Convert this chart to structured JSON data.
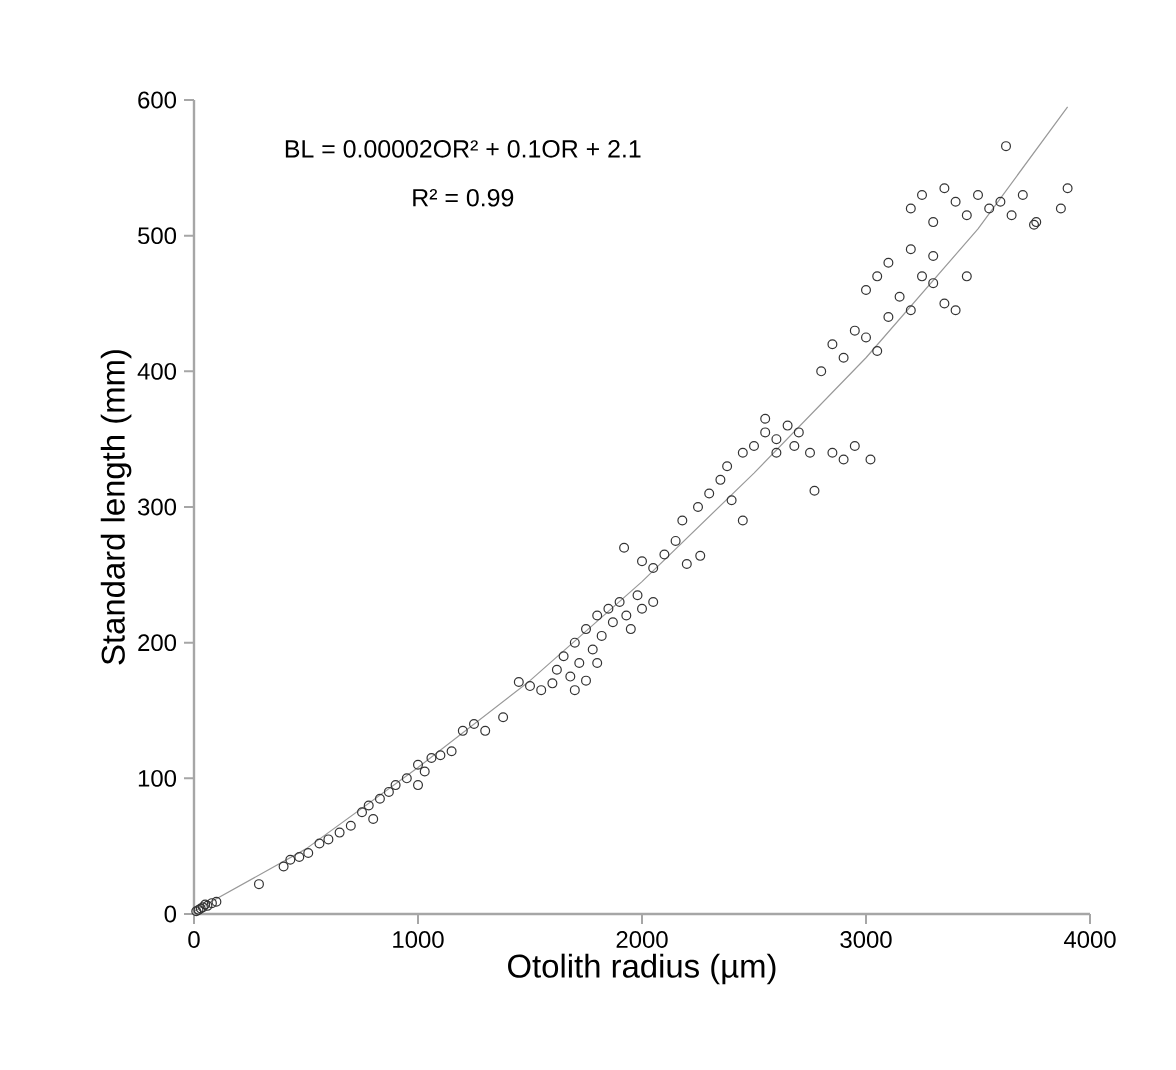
{
  "chart_data": {
    "type": "scatter",
    "xlabel": "Otolith radius (µm)",
    "ylabel": "Standard length (mm)",
    "xlim": [
      0,
      4000
    ],
    "ylim": [
      0,
      600
    ],
    "xticks": [
      0,
      1000,
      2000,
      3000,
      4000
    ],
    "yticks": [
      0,
      100,
      200,
      300,
      400,
      500,
      600
    ],
    "grid": false,
    "annotations": [
      "BL = 0.00002OR² + 0.1OR + 2.1",
      "R² = 0.99"
    ],
    "series": [
      {
        "marker": "circle",
        "color": "#333333",
        "x": [
          10,
          20,
          30,
          40,
          50,
          60,
          80,
          100,
          290,
          400,
          430,
          470,
          510,
          560,
          600,
          650,
          700,
          750,
          780,
          800,
          830,
          870,
          900,
          950,
          1000,
          1030,
          1060,
          1100,
          1150,
          1000,
          1200,
          1250,
          1300,
          1380,
          1450,
          1500,
          1550,
          1600,
          1620,
          1650,
          1680,
          1700,
          1720,
          1750,
          1780,
          1800,
          1820,
          1850,
          1870,
          1900,
          1930,
          1950,
          1980,
          2000,
          2050,
          1700,
          1750,
          1800,
          1920,
          2000,
          2050,
          2100,
          2150,
          2200,
          2260,
          2180,
          2250,
          2300,
          2350,
          2400,
          2450,
          2380,
          2450,
          2500,
          2550,
          2600,
          2650,
          2700,
          2600,
          2550,
          2680,
          2750,
          2770,
          2850,
          2900,
          2950,
          3020,
          2800,
          2850,
          2900,
          2950,
          3000,
          3050,
          3100,
          3000,
          3050,
          3100,
          3150,
          3200,
          3250,
          3300,
          3350,
          3400,
          3450,
          3200,
          3300,
          3200,
          3250,
          3300,
          3350,
          3400,
          3450,
          3500,
          3550,
          3600,
          3650,
          3700,
          3750,
          3760,
          3870,
          3900,
          3625
        ],
        "values": [
          2,
          3,
          4,
          5,
          7,
          6,
          8,
          9,
          22,
          35,
          40,
          42,
          45,
          52,
          55,
          60,
          65,
          75,
          80,
          70,
          85,
          90,
          95,
          100,
          110,
          105,
          115,
          117,
          120,
          95,
          135,
          140,
          135,
          145,
          171,
          168,
          165,
          170,
          180,
          190,
          175,
          200,
          185,
          210,
          195,
          220,
          205,
          225,
          215,
          230,
          220,
          210,
          235,
          225,
          230,
          165,
          172,
          185,
          270,
          260,
          255,
          265,
          275,
          258,
          264,
          290,
          300,
          310,
          320,
          305,
          290,
          330,
          340,
          345,
          355,
          350,
          360,
          355,
          340,
          365,
          345,
          340,
          312,
          340,
          335,
          345,
          335,
          400,
          420,
          410,
          430,
          425,
          415,
          440,
          460,
          470,
          480,
          455,
          445,
          470,
          465,
          450,
          445,
          470,
          490,
          485,
          520,
          530,
          510,
          535,
          525,
          515,
          530,
          520,
          525,
          515,
          530,
          508,
          510,
          520,
          535,
          566
        ]
      },
      {
        "type": "line",
        "color": "#999999",
        "x": [
          0,
          500,
          1000,
          1500,
          2000,
          2500,
          3000,
          3500,
          3900
        ],
        "values": [
          2,
          48,
          108,
          172,
          245,
          325,
          410,
          505,
          595
        ]
      }
    ]
  }
}
